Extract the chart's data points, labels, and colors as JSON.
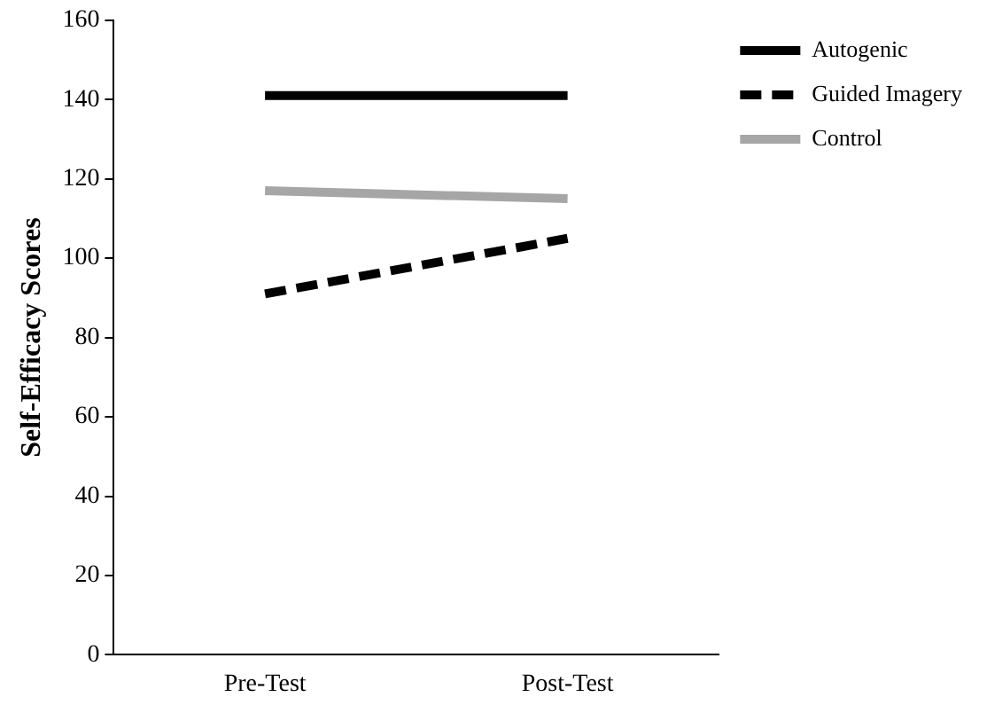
{
  "chart_data": {
    "type": "line",
    "ylabel": "Self-Efficacy Scores",
    "categories": [
      "Pre-Test",
      "Post-Test"
    ],
    "series": [
      {
        "name": "Autogenic",
        "color": "#000000",
        "values": [
          141,
          141
        ],
        "line_style": "solid"
      },
      {
        "name": "Guided Imagery",
        "color": "#000000",
        "values": [
          91,
          105
        ],
        "line_style": "dashed"
      },
      {
        "name": "Control",
        "color": "#a6a6a6",
        "values": [
          117,
          115
        ],
        "line_style": "solid"
      }
    ],
    "ylim": [
      0,
      160
    ],
    "yticks": [
      0,
      20,
      40,
      60,
      80,
      100,
      120,
      140,
      160
    ],
    "grid": false,
    "legend": "top right",
    "marker": "none"
  }
}
